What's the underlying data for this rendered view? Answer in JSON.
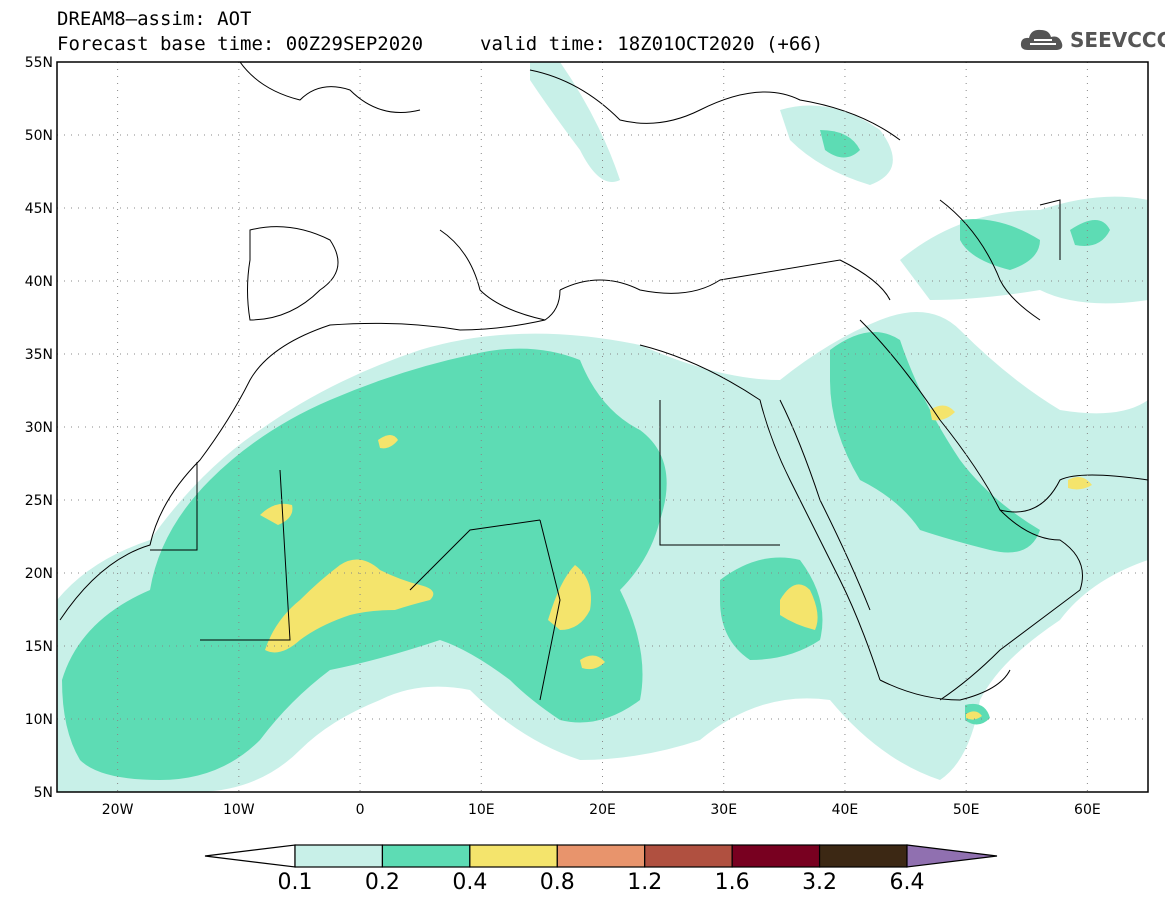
{
  "header": {
    "title_line1": "DREAM8–assim: AOT",
    "title_line2": "Forecast base time: 00Z29SEP2020",
    "valid_time": "valid time: 18Z01OCT2020 (+66)",
    "logo_text": "SEEVCCC",
    "logo_icon": "cloud-icon"
  },
  "axes": {
    "lat_labels": [
      "55N",
      "50N",
      "45N",
      "40N",
      "35N",
      "30N",
      "25N",
      "20N",
      "15N",
      "10N",
      "5N"
    ],
    "lon_labels": [
      "20W",
      "10W",
      "0",
      "10E",
      "20E",
      "30E",
      "40E",
      "50E",
      "60E"
    ]
  },
  "colorbar": {
    "labels": [
      "0.1",
      "0.2",
      "0.4",
      "0.8",
      "1.2",
      "1.6",
      "3.2",
      "6.4"
    ],
    "colors": [
      "#ffffff",
      "#c8f0e8",
      "#5ddcb4",
      "#f4e46c",
      "#e8946c",
      "#b05040",
      "#780020",
      "#3c2814",
      "#9070b0"
    ]
  }
}
